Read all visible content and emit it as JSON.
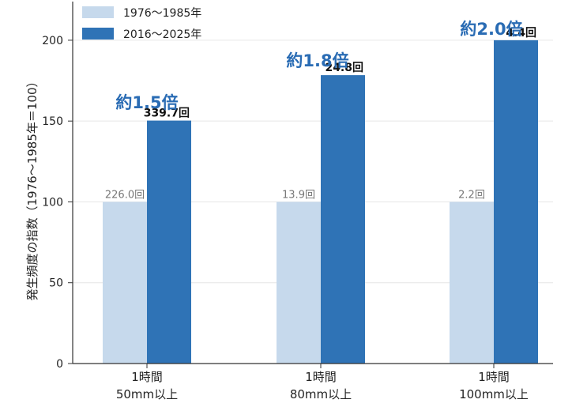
{
  "chart_data": {
    "type": "bar",
    "ylabel": "発生頻度の指数（1976〜1985年＝100）",
    "ylim": [
      0,
      220
    ],
    "yticks": [
      0,
      50,
      100,
      150,
      200
    ],
    "grid": true,
    "legend_position": "top-left",
    "categories": [
      {
        "line1": "1時間",
        "line2": "50mm以上"
      },
      {
        "line1": "1時間",
        "line2": "80mm以上"
      },
      {
        "line1": "1時間",
        "line2": "100mm以上"
      }
    ],
    "series": [
      {
        "name": "1976〜1985年",
        "color": "#c6d9ec",
        "values": [
          100,
          100,
          100
        ],
        "labels": [
          "226.0回",
          "13.9回",
          "2.2回"
        ]
      },
      {
        "name": "2016〜2025年",
        "color": "#2f73b6",
        "values": [
          150.3,
          178.4,
          200
        ],
        "labels": [
          "339.7回",
          "24.8回",
          "4.4回"
        ]
      }
    ],
    "annotations": [
      "約1.5倍",
      "約1.8倍",
      "約2.0倍"
    ],
    "annotation_color": "#2a6cb4"
  }
}
